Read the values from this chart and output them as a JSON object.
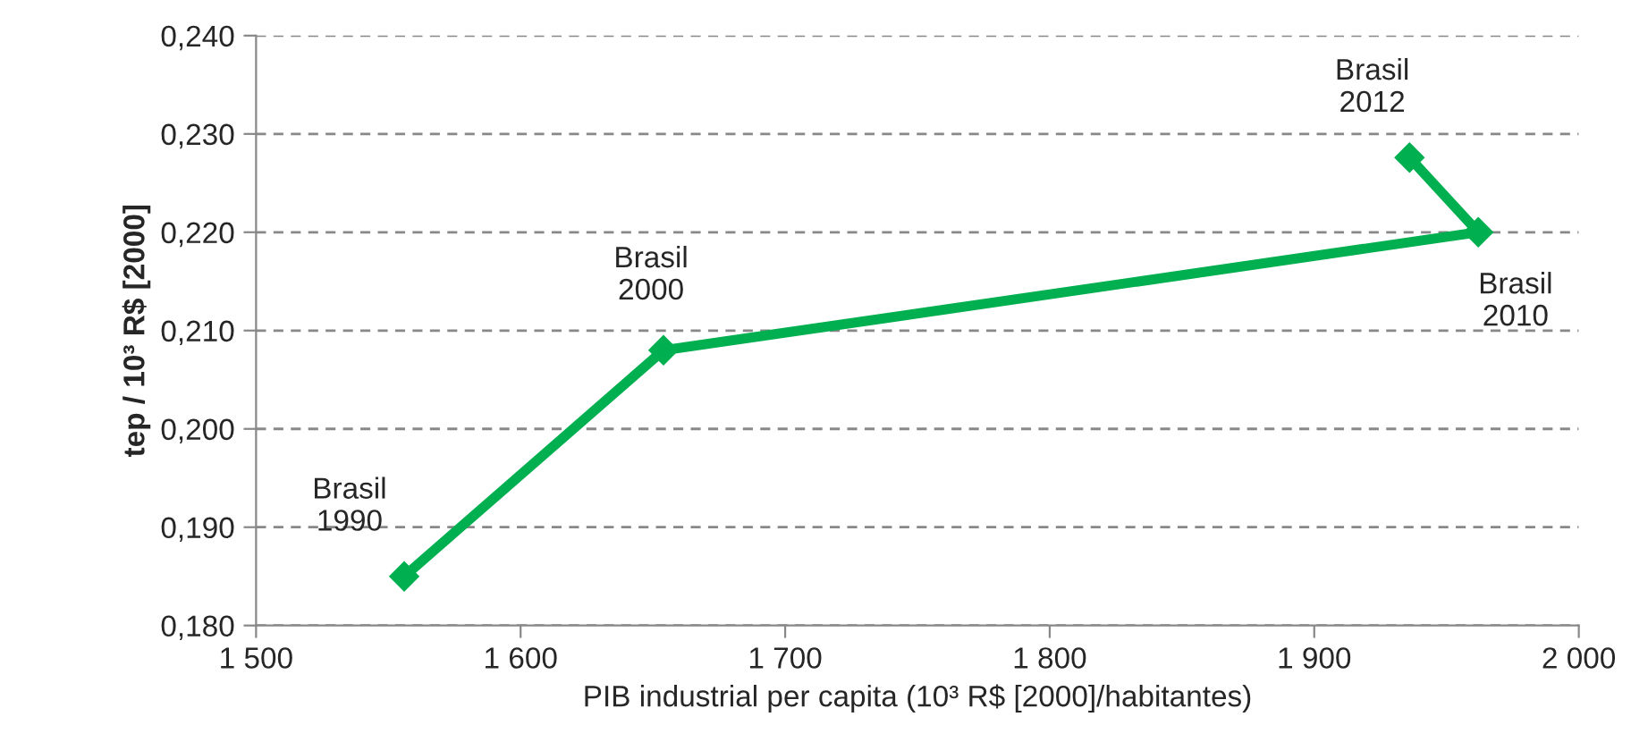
{
  "chart_data": {
    "type": "line",
    "xlabel": "PIB industrial per capita (10³ R$ [2000]/habitantes)",
    "ylabel": "tep / 10³ R$ [2000]",
    "x": [
      1556,
      1654,
      1962,
      1936
    ],
    "series": [
      {
        "color": "#00b050",
        "values": [
          0.185,
          0.208,
          0.22,
          0.2276
        ]
      }
    ],
    "marker": "diamond",
    "line_style": "solid",
    "grid": "y",
    "xlim": [
      1500,
      2000
    ],
    "xticks": [
      {
        "value": 1500,
        "label": "1 500"
      },
      {
        "value": 1600,
        "label": "1 600"
      },
      {
        "value": 1700,
        "label": "1 700"
      },
      {
        "value": 1800,
        "label": "1 800"
      },
      {
        "value": 1900,
        "label": "1 900"
      },
      {
        "value": 2000,
        "label": "2 000"
      }
    ],
    "ylim": [
      0.18,
      0.24
    ],
    "yticks": [
      {
        "value": 0.18,
        "label": "0,180"
      },
      {
        "value": 0.19,
        "label": "0,190"
      },
      {
        "value": 0.2,
        "label": "0,200"
      },
      {
        "value": 0.21,
        "label": "0,210"
      },
      {
        "value": 0.22,
        "label": "0,220"
      },
      {
        "value": 0.23,
        "label": "0,230"
      },
      {
        "value": 0.24,
        "label": "0,240"
      }
    ],
    "annotations": [
      {
        "text": "Brasil\n1990",
        "x": 1556,
        "y": 0.185
      },
      {
        "text": "Brasil\n2000",
        "x": 1654,
        "y": 0.208
      },
      {
        "text": "Brasil\n2010",
        "x": 1962,
        "y": 0.22
      },
      {
        "text": "Brasil\n2012",
        "x": 1936,
        "y": 0.2276
      }
    ]
  }
}
